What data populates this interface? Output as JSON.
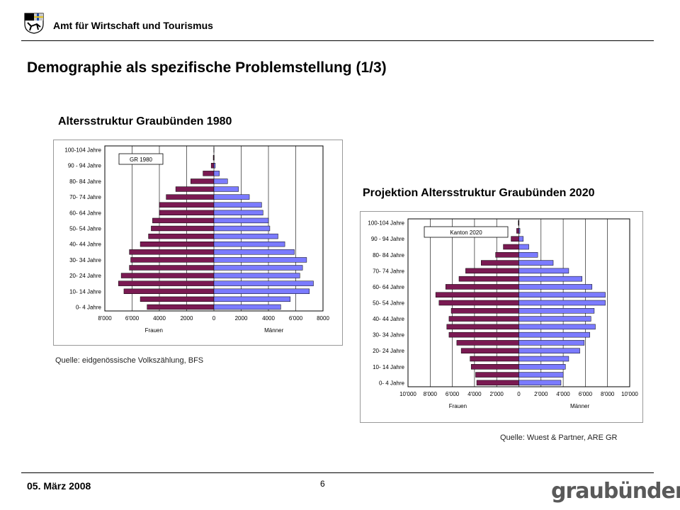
{
  "header": {
    "organization": "Amt für Wirtschaft und Tourismus",
    "logo_icon": "coat-of-arms-graubuenden-icon"
  },
  "slide_title": "Demographie als spezifische Problemstellung (1/3)",
  "footer": {
    "date": "05. März 2008",
    "page_number": "6",
    "brand": "graubünden",
    "brand_icon": "graubuenden-wordmark-icon"
  },
  "colors": {
    "frauen": "#7a1a52",
    "maenner": "#7b7bff",
    "bar_edge": "#000000"
  },
  "chart_data": [
    {
      "type": "bar",
      "orientation": "horizontal",
      "title": "Altersstruktur Graubünden 1980",
      "legend_box": "GR 1980",
      "source": "Quelle: eidgenössische Volkszählung, BFS",
      "categories": [
        "0- 4 Jahre",
        "5- 9 Jahre",
        "10- 14 Jahre",
        "15- 19 Jahre",
        "20- 24 Jahre",
        "25- 29 Jahre",
        "30- 34 Jahre",
        "35- 39 Jahre",
        "40- 44 Jahre",
        "45- 49 Jahre",
        "50- 54 Jahre",
        "55- 59 Jahre",
        "60- 64 Jahre",
        "65- 69 Jahre",
        "70- 74 Jahre",
        "75- 79 Jahre",
        "80- 84 Jahre",
        "85- 89 Jahre",
        "90- 94 Jahre",
        "95- 99 Jahre",
        "100-104 Jahre"
      ],
      "category_labels_shown": [
        "0- 4 Jahre",
        "10- 14 Jahre",
        "20- 24 Jahre",
        "30- 34 Jahre",
        "40- 44 Jahre",
        "50- 54 Jahre",
        "60- 64 Jahre",
        "70- 74 Jahre",
        "80- 84 Jahre",
        "90 - 94 Jahre",
        "100-104 Jahre"
      ],
      "series": [
        {
          "name": "Frauen",
          "values": [
            4900,
            5400,
            6600,
            7000,
            6800,
            6200,
            6100,
            6200,
            5400,
            4800,
            4600,
            4500,
            4000,
            4000,
            3500,
            2800,
            1700,
            800,
            200,
            50,
            10
          ]
        },
        {
          "name": "Männer",
          "values": [
            4900,
            5600,
            7000,
            7300,
            6300,
            6500,
            6800,
            5900,
            5200,
            4700,
            4100,
            4000,
            3600,
            3500,
            2600,
            1800,
            1000,
            400,
            100,
            20,
            5
          ]
        }
      ],
      "x_ticks": [
        "8'000",
        "6'000",
        "4000",
        "2000",
        "0",
        "2000",
        "4000",
        "6'000",
        "8000"
      ],
      "xlim": [
        -8000,
        8000
      ],
      "xlabel_left": "Frauen",
      "xlabel_right": "Männer",
      "grid": true
    },
    {
      "type": "bar",
      "orientation": "horizontal",
      "title": "Projektion Altersstruktur Graubünden 2020",
      "legend_box": "Kanton 2020",
      "source": "Quelle: Wuest & Partner, ARE GR",
      "categories": [
        "0- 4 Jahre",
        "5- 9 Jahre",
        "10- 14 Jahre",
        "15- 19 Jahre",
        "20- 24 Jahre",
        "25- 29 Jahre",
        "30- 34 Jahre",
        "35- 39 Jahre",
        "40- 44 Jahre",
        "45- 49 Jahre",
        "50- 54 Jahre",
        "55- 59 Jahre",
        "60- 64 Jahre",
        "65- 69 Jahre",
        "70- 74 Jahre",
        "75- 79 Jahre",
        "80- 84 Jahre",
        "85- 89 Jahre",
        "90- 94 Jahre",
        "95- 99 Jahre",
        "100-104 Jahre"
      ],
      "category_labels_shown": [
        "0- 4 Jahre",
        "10- 14 Jahre",
        "20- 24 Jahre",
        "30- 34 Jahre",
        "40- 44 Jahre",
        "50- 54 Jahre",
        "60- 64 Jahre",
        "70- 74 Jahre",
        "80- 84 Jahre",
        "90 - 94 Jahre",
        "100-104 Jahre"
      ],
      "series": [
        {
          "name": "Frauen",
          "values": [
            3800,
            3900,
            4300,
            4400,
            5200,
            5600,
            6300,
            6500,
            6300,
            6100,
            7200,
            7500,
            6600,
            5400,
            4800,
            3400,
            2100,
            1400,
            700,
            200,
            50
          ]
        },
        {
          "name": "Männer",
          "values": [
            3800,
            4000,
            4200,
            4500,
            5500,
            5900,
            6400,
            6900,
            6500,
            6800,
            7800,
            7800,
            6600,
            5700,
            4500,
            3100,
            1700,
            900,
            400,
            100,
            20
          ]
        }
      ],
      "x_ticks": [
        "10'000",
        "8'000",
        "6'000",
        "4'000",
        "2'000",
        "0",
        "2'000",
        "4'000",
        "6'000",
        "8'000",
        "10'000"
      ],
      "xlim": [
        -10000,
        10000
      ],
      "xlabel_left": "Frauen",
      "xlabel_right": "Männer",
      "grid": true
    }
  ]
}
